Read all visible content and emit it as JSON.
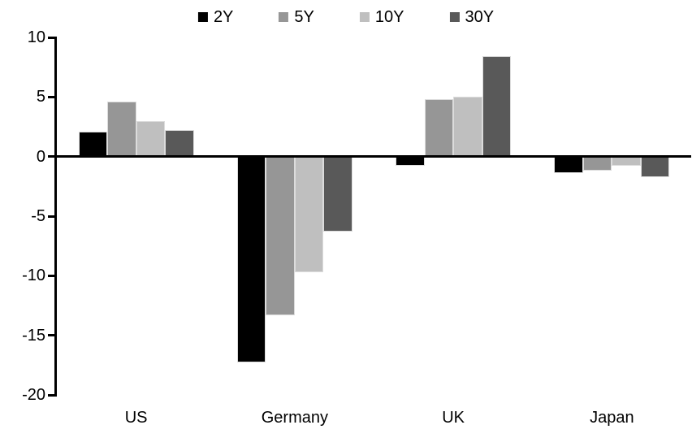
{
  "chart_data": {
    "type": "bar",
    "title": "",
    "xlabel": "",
    "ylabel": "",
    "categories": [
      "US",
      "Germany",
      "UK",
      "Japan"
    ],
    "series": [
      {
        "name": "2Y",
        "color": "#000000",
        "values": [
          2.1,
          -17.3,
          -0.8,
          -1.4
        ]
      },
      {
        "name": "5Y",
        "color": "#969696",
        "values": [
          4.6,
          -13.3,
          4.8,
          -1.2
        ]
      },
      {
        "name": "10Y",
        "color": "#bfbfbf",
        "values": [
          3.0,
          -9.7,
          5.0,
          -0.8
        ]
      },
      {
        "name": "30Y",
        "color": "#595959",
        "values": [
          2.2,
          -6.3,
          8.4,
          -1.7
        ]
      }
    ],
    "ylim": [
      -20,
      10
    ],
    "yticks": [
      10,
      5,
      0,
      -5,
      -10,
      -15,
      -20
    ],
    "grid": false,
    "legend_position": "top",
    "axis_color": "#000000",
    "background_color": "#ffffff"
  }
}
